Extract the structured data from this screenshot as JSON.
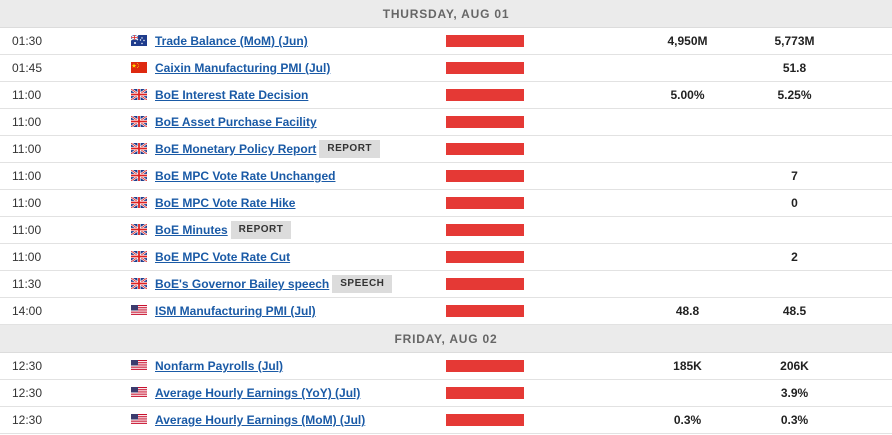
{
  "days": [
    {
      "header": "THURSDAY, AUG 01",
      "events": [
        {
          "time": "01:30",
          "flag": "au-flag-icon",
          "name": "Trade Balance (MoM) (Jun)",
          "tag": "",
          "impact": "high",
          "col1": "4,950M",
          "col2": "5,773M"
        },
        {
          "time": "01:45",
          "flag": "cn-flag-icon",
          "name": "Caixin Manufacturing PMI (Jul)",
          "tag": "",
          "impact": "high",
          "col1": "",
          "col2": "51.8"
        },
        {
          "time": "11:00",
          "flag": "uk-flag-icon",
          "name": "BoE Interest Rate Decision",
          "tag": "",
          "impact": "high",
          "col1": "5.00%",
          "col2": "5.25%"
        },
        {
          "time": "11:00",
          "flag": "uk-flag-icon",
          "name": "BoE Asset Purchase Facility",
          "tag": "",
          "impact": "high",
          "col1": "",
          "col2": ""
        },
        {
          "time": "11:00",
          "flag": "uk-flag-icon",
          "name": "BoE Monetary Policy Report",
          "tag": "REPORT",
          "impact": "high",
          "col1": "",
          "col2": ""
        },
        {
          "time": "11:00",
          "flag": "uk-flag-icon",
          "name": "BoE MPC Vote Rate Unchanged",
          "tag": "",
          "impact": "high",
          "col1": "",
          "col2": "7"
        },
        {
          "time": "11:00",
          "flag": "uk-flag-icon",
          "name": "BoE MPC Vote Rate Hike",
          "tag": "",
          "impact": "high",
          "col1": "",
          "col2": "0"
        },
        {
          "time": "11:00",
          "flag": "uk-flag-icon",
          "name": "BoE Minutes",
          "tag": "REPORT",
          "impact": "high",
          "col1": "",
          "col2": ""
        },
        {
          "time": "11:00",
          "flag": "uk-flag-icon",
          "name": "BoE MPC Vote Rate Cut",
          "tag": "",
          "impact": "high",
          "col1": "",
          "col2": "2"
        },
        {
          "time": "11:30",
          "flag": "uk-flag-icon",
          "name": "BoE's Governor Bailey speech",
          "tag": "SPEECH",
          "impact": "high",
          "col1": "",
          "col2": ""
        },
        {
          "time": "14:00",
          "flag": "us-flag-icon",
          "name": "ISM Manufacturing PMI (Jul)",
          "tag": "",
          "impact": "high",
          "col1": "48.8",
          "col2": "48.5"
        }
      ]
    },
    {
      "header": "FRIDAY, AUG 02",
      "events": [
        {
          "time": "12:30",
          "flag": "us-flag-icon",
          "name": "Nonfarm Payrolls (Jul)",
          "tag": "",
          "impact": "high",
          "col1": "185K",
          "col2": "206K"
        },
        {
          "time": "12:30",
          "flag": "us-flag-icon",
          "name": "Average Hourly Earnings (YoY) (Jul)",
          "tag": "",
          "impact": "high",
          "col1": "",
          "col2": "3.9%"
        },
        {
          "time": "12:30",
          "flag": "us-flag-icon",
          "name": "Average Hourly Earnings (MoM) (Jul)",
          "tag": "",
          "impact": "high",
          "col1": "0.3%",
          "col2": "0.3%"
        }
      ]
    }
  ],
  "colors": {
    "impact_high": "#e53935",
    "link": "#1a5aa6",
    "header_bg": "#ebebeb"
  }
}
